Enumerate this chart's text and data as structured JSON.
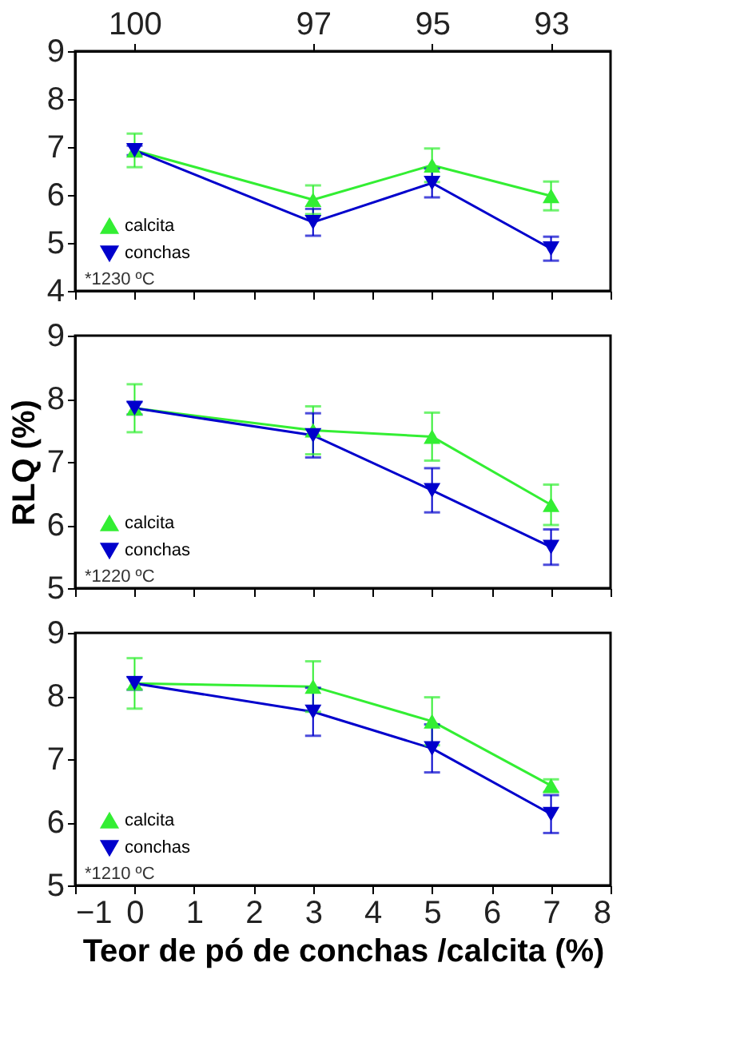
{
  "chart_data": [
    {
      "type": "line",
      "xlim": [
        -1,
        8
      ],
      "ylim": [
        4,
        9
      ],
      "yticks": [
        4,
        5,
        6,
        7,
        8,
        9
      ],
      "xticks": [
        -1,
        0,
        1,
        2,
        3,
        4,
        5,
        6,
        7,
        8
      ],
      "x2lim": [
        101,
        92
      ],
      "x2ticks": [
        100,
        97,
        95,
        93
      ],
      "tick_labels": "y",
      "grid": false,
      "legend": "bottom left",
      "line_style": "solid",
      "annotations": [
        "*1230 ºC"
      ],
      "x": [
        0,
        3,
        5,
        7
      ],
      "series": [
        {
          "name": "calcita",
          "color": "#33ee33",
          "marker": "triangle",
          "values": [
            6.93,
            5.9,
            6.62,
            5.98
          ],
          "errors": [
            0.35,
            0.3,
            0.35,
            0.3
          ]
        },
        {
          "name": "conchas",
          "color": "#0000cc",
          "marker": "triangle-down",
          "values": [
            6.93,
            5.43,
            6.25,
            4.88
          ],
          "errors": [
            0.1,
            0.28,
            0.3,
            0.25
          ]
        }
      ]
    },
    {
      "type": "line",
      "xlim": [
        -1,
        8
      ],
      "ylim": [
        5,
        9
      ],
      "yticks": [
        5,
        6,
        7,
        8,
        9
      ],
      "xticks": [
        -1,
        0,
        1,
        2,
        3,
        4,
        5,
        6,
        7,
        8
      ],
      "tick_labels": "y",
      "ylabel": "RLQ (%)",
      "grid": false,
      "legend": "bottom left",
      "line_style": "solid",
      "annotations": [
        "*1220 ºC"
      ],
      "x": [
        0,
        3,
        5,
        7
      ],
      "series": [
        {
          "name": "calcita",
          "color": "#33ee33",
          "marker": "triangle",
          "values": [
            7.85,
            7.5,
            7.4,
            6.32
          ],
          "errors": [
            0.38,
            0.38,
            0.38,
            0.32
          ]
        },
        {
          "name": "conchas",
          "color": "#0000cc",
          "marker": "triangle-down",
          "values": [
            7.85,
            7.42,
            6.55,
            5.65
          ],
          "errors": [
            0.1,
            0.35,
            0.35,
            0.28
          ]
        }
      ]
    },
    {
      "type": "line",
      "xlim": [
        -1,
        8
      ],
      "ylim": [
        5,
        9
      ],
      "yticks": [
        5,
        6,
        7,
        8,
        9
      ],
      "xticks": [
        -1,
        0,
        1,
        2,
        3,
        4,
        5,
        6,
        7,
        8
      ],
      "xlabel": "Teor de pó de conchas /calcita (%)",
      "grid": false,
      "legend": "bottom left",
      "line_style": "solid",
      "annotations": [
        "*1210 ºC"
      ],
      "x": [
        0,
        3,
        5,
        7
      ],
      "series": [
        {
          "name": "calcita",
          "color": "#33ee33",
          "marker": "triangle",
          "values": [
            8.2,
            8.15,
            7.6,
            6.58
          ],
          "errors": [
            0.4,
            0.4,
            0.38,
            0.1
          ]
        },
        {
          "name": "conchas",
          "color": "#0000cc",
          "marker": "triangle-down",
          "values": [
            8.2,
            7.75,
            7.17,
            6.13
          ],
          "errors": [
            0.1,
            0.38,
            0.38,
            0.3
          ]
        }
      ]
    }
  ]
}
